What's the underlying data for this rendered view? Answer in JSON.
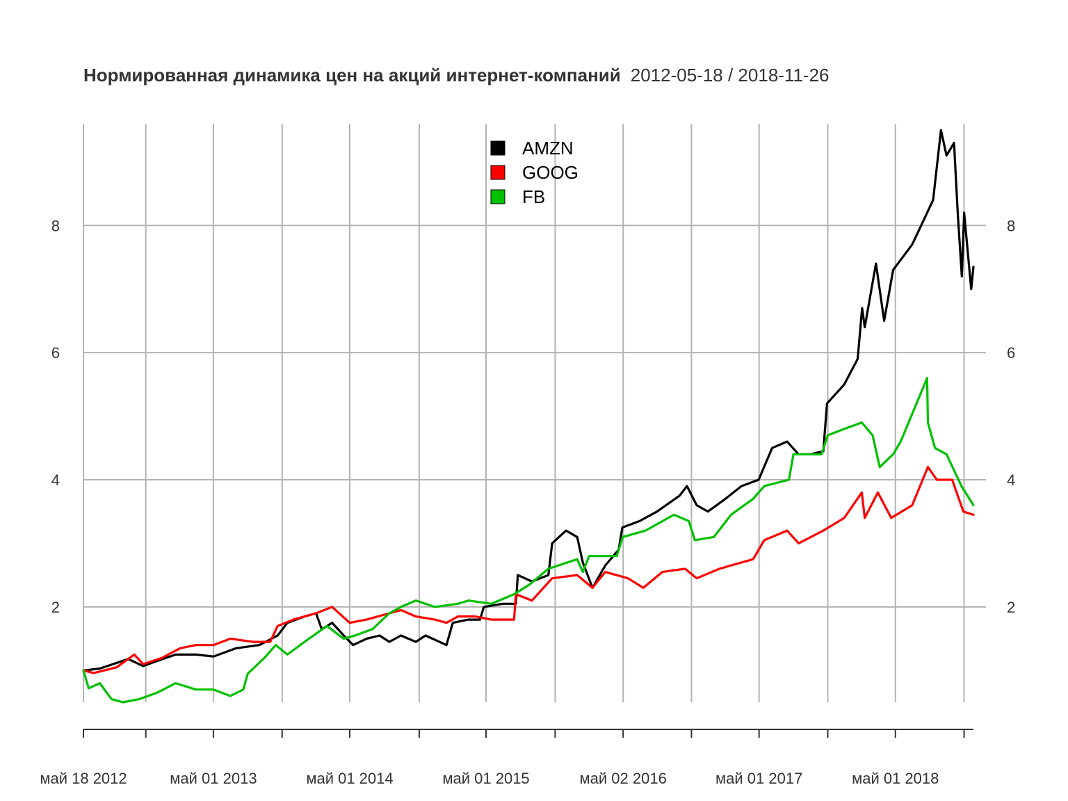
{
  "chart_data": {
    "type": "line",
    "title": "Нормированная динамика цен на акций интернет-компаний",
    "date_range": "2012-05-18 / 2018-11-26",
    "x_axis": {
      "type": "date",
      "range": [
        "2012-05-18",
        "2018-11-26"
      ],
      "tick_labels": [
        {
          "date": "2012-05-18",
          "label": "май 18 2012"
        },
        {
          "date": "2013-05-01",
          "label": "май 01 2013"
        },
        {
          "date": "2014-05-01",
          "label": "май 01 2014"
        },
        {
          "date": "2015-05-01",
          "label": "май 01 2015"
        },
        {
          "date": "2016-05-02",
          "label": "май 02 2016"
        },
        {
          "date": "2017-05-01",
          "label": "май 01 2017"
        },
        {
          "date": "2018-05-01",
          "label": "май 01 2018"
        }
      ],
      "minor_ticks": [
        "2012-11-01",
        "2013-11-01",
        "2014-11-03",
        "2015-11-02",
        "2016-11-01",
        "2017-11-01",
        "2018-11-01"
      ]
    },
    "y_axis": {
      "range": [
        0.5,
        9.6
      ],
      "ticks": [
        2,
        4,
        6,
        8
      ],
      "tick_labels": [
        "2",
        "4",
        "6",
        "8"
      ]
    },
    "grid": true,
    "legend": {
      "position": "top-center",
      "entries": [
        "AMZN",
        "GOOG",
        "FB"
      ]
    },
    "series": [
      {
        "name": "AMZN",
        "color": "#000000",
        "points": [
          [
            "2012-05-18",
            1.0
          ],
          [
            "2012-07-01",
            1.03
          ],
          [
            "2012-09-15",
            1.18
          ],
          [
            "2012-10-25",
            1.07
          ],
          [
            "2012-12-01",
            1.15
          ],
          [
            "2013-01-20",
            1.25
          ],
          [
            "2013-03-15",
            1.25
          ],
          [
            "2013-05-01",
            1.22
          ],
          [
            "2013-07-01",
            1.35
          ],
          [
            "2013-09-01",
            1.4
          ],
          [
            "2013-10-20",
            1.55
          ],
          [
            "2013-11-15",
            1.75
          ],
          [
            "2013-12-31",
            1.85
          ],
          [
            "2014-01-31",
            1.9
          ],
          [
            "2014-02-15",
            1.65
          ],
          [
            "2014-03-15",
            1.75
          ],
          [
            "2014-04-15",
            1.55
          ],
          [
            "2014-05-10",
            1.4
          ],
          [
            "2014-06-15",
            1.5
          ],
          [
            "2014-07-20",
            1.55
          ],
          [
            "2014-08-15",
            1.45
          ],
          [
            "2014-09-15",
            1.55
          ],
          [
            "2014-10-25",
            1.45
          ],
          [
            "2014-11-20",
            1.55
          ],
          [
            "2015-01-15",
            1.4
          ],
          [
            "2015-02-01",
            1.75
          ],
          [
            "2015-03-15",
            1.8
          ],
          [
            "2015-04-15",
            1.8
          ],
          [
            "2015-04-25",
            2.0
          ],
          [
            "2015-06-15",
            2.05
          ],
          [
            "2015-07-20",
            2.05
          ],
          [
            "2015-07-25",
            2.5
          ],
          [
            "2015-09-01",
            2.4
          ],
          [
            "2015-10-15",
            2.5
          ],
          [
            "2015-10-25",
            3.0
          ],
          [
            "2015-12-01",
            3.2
          ],
          [
            "2015-12-31",
            3.1
          ],
          [
            "2016-01-15",
            2.7
          ],
          [
            "2016-02-10",
            2.3
          ],
          [
            "2016-03-15",
            2.65
          ],
          [
            "2016-04-20",
            2.9
          ],
          [
            "2016-04-30",
            3.25
          ],
          [
            "2016-06-15",
            3.35
          ],
          [
            "2016-08-01",
            3.5
          ],
          [
            "2016-09-30",
            3.75
          ],
          [
            "2016-10-20",
            3.9
          ],
          [
            "2016-11-15",
            3.6
          ],
          [
            "2016-12-15",
            3.5
          ],
          [
            "2017-01-31",
            3.7
          ],
          [
            "2017-03-15",
            3.9
          ],
          [
            "2017-04-30",
            4.0
          ],
          [
            "2017-06-05",
            4.5
          ],
          [
            "2017-07-15",
            4.6
          ],
          [
            "2017-08-15",
            4.4
          ],
          [
            "2017-09-15",
            4.4
          ],
          [
            "2017-10-20",
            4.45
          ],
          [
            "2017-10-30",
            5.2
          ],
          [
            "2017-12-15",
            5.5
          ],
          [
            "2018-01-20",
            5.9
          ],
          [
            "2018-02-01",
            6.7
          ],
          [
            "2018-02-08",
            6.4
          ],
          [
            "2018-03-10",
            7.4
          ],
          [
            "2018-04-01",
            6.5
          ],
          [
            "2018-04-25",
            7.3
          ],
          [
            "2018-06-15",
            7.7
          ],
          [
            "2018-07-25",
            8.2
          ],
          [
            "2018-08-10",
            8.4
          ],
          [
            "2018-08-31",
            9.5
          ],
          [
            "2018-09-15",
            9.1
          ],
          [
            "2018-10-05",
            9.3
          ],
          [
            "2018-10-15",
            8.2
          ],
          [
            "2018-10-26",
            7.2
          ],
          [
            "2018-11-01",
            8.2
          ],
          [
            "2018-11-20",
            7.0
          ],
          [
            "2018-11-26",
            7.35
          ]
        ]
      },
      {
        "name": "GOOG",
        "color": "#ff0000",
        "points": [
          [
            "2012-05-18",
            1.0
          ],
          [
            "2012-06-15",
            0.96
          ],
          [
            "2012-08-15",
            1.05
          ],
          [
            "2012-10-01",
            1.25
          ],
          [
            "2012-10-25",
            1.1
          ],
          [
            "2012-12-15",
            1.2
          ],
          [
            "2013-02-01",
            1.35
          ],
          [
            "2013-03-15",
            1.4
          ],
          [
            "2013-05-01",
            1.4
          ],
          [
            "2013-06-15",
            1.5
          ],
          [
            "2013-08-15",
            1.45
          ],
          [
            "2013-09-30",
            1.45
          ],
          [
            "2013-10-20",
            1.7
          ],
          [
            "2013-12-01",
            1.8
          ],
          [
            "2014-01-31",
            1.9
          ],
          [
            "2014-03-15",
            2.0
          ],
          [
            "2014-05-01",
            1.75
          ],
          [
            "2014-06-15",
            1.8
          ],
          [
            "2014-08-15",
            1.9
          ],
          [
            "2014-09-15",
            1.95
          ],
          [
            "2014-10-25",
            1.85
          ],
          [
            "2014-12-15",
            1.8
          ],
          [
            "2015-01-15",
            1.75
          ],
          [
            "2015-02-15",
            1.85
          ],
          [
            "2015-04-01",
            1.85
          ],
          [
            "2015-05-15",
            1.8
          ],
          [
            "2015-07-15",
            1.8
          ],
          [
            "2015-07-20",
            2.2
          ],
          [
            "2015-09-01",
            2.1
          ],
          [
            "2015-10-25",
            2.45
          ],
          [
            "2015-12-31",
            2.5
          ],
          [
            "2016-02-10",
            2.3
          ],
          [
            "2016-03-15",
            2.55
          ],
          [
            "2016-05-15",
            2.45
          ],
          [
            "2016-06-25",
            2.3
          ],
          [
            "2016-08-15",
            2.55
          ],
          [
            "2016-10-15",
            2.6
          ],
          [
            "2016-11-15",
            2.45
          ],
          [
            "2017-01-15",
            2.6
          ],
          [
            "2017-03-15",
            2.7
          ],
          [
            "2017-04-15",
            2.75
          ],
          [
            "2017-05-15",
            3.05
          ],
          [
            "2017-07-15",
            3.2
          ],
          [
            "2017-08-15",
            3.0
          ],
          [
            "2017-10-20",
            3.2
          ],
          [
            "2017-12-15",
            3.4
          ],
          [
            "2018-01-31",
            3.8
          ],
          [
            "2018-02-08",
            3.4
          ],
          [
            "2018-03-15",
            3.8
          ],
          [
            "2018-04-20",
            3.4
          ],
          [
            "2018-06-15",
            3.6
          ],
          [
            "2018-07-27",
            4.2
          ],
          [
            "2018-08-20",
            4.0
          ],
          [
            "2018-09-30",
            4.0
          ],
          [
            "2018-10-30",
            3.5
          ],
          [
            "2018-11-26",
            3.45
          ]
        ]
      },
      {
        "name": "FB",
        "color": "#00c000",
        "points": [
          [
            "2012-05-18",
            1.0
          ],
          [
            "2012-06-01",
            0.72
          ],
          [
            "2012-07-01",
            0.8
          ],
          [
            "2012-08-01",
            0.55
          ],
          [
            "2012-09-01",
            0.5
          ],
          [
            "2012-10-15",
            0.55
          ],
          [
            "2012-12-01",
            0.65
          ],
          [
            "2013-01-20",
            0.8
          ],
          [
            "2013-03-15",
            0.7
          ],
          [
            "2013-05-01",
            0.7
          ],
          [
            "2013-06-15",
            0.6
          ],
          [
            "2013-07-20",
            0.7
          ],
          [
            "2013-08-01",
            0.95
          ],
          [
            "2013-09-15",
            1.2
          ],
          [
            "2013-10-15",
            1.4
          ],
          [
            "2013-11-15",
            1.25
          ],
          [
            "2013-12-31",
            1.45
          ],
          [
            "2014-03-01",
            1.7
          ],
          [
            "2014-04-15",
            1.5
          ],
          [
            "2014-05-15",
            1.55
          ],
          [
            "2014-07-01",
            1.65
          ],
          [
            "2014-08-15",
            1.9
          ],
          [
            "2014-09-15",
            2.0
          ],
          [
            "2014-10-25",
            2.1
          ],
          [
            "2014-12-15",
            2.0
          ],
          [
            "2015-02-15",
            2.05
          ],
          [
            "2015-03-15",
            2.1
          ],
          [
            "2015-05-15",
            2.05
          ],
          [
            "2015-07-15",
            2.2
          ],
          [
            "2015-08-25",
            2.35
          ],
          [
            "2015-10-15",
            2.6
          ],
          [
            "2015-12-31",
            2.75
          ],
          [
            "2016-01-15",
            2.55
          ],
          [
            "2016-02-01",
            2.8
          ],
          [
            "2016-04-15",
            2.8
          ],
          [
            "2016-05-01",
            3.1
          ],
          [
            "2016-07-01",
            3.2
          ],
          [
            "2016-09-15",
            3.45
          ],
          [
            "2016-10-25",
            3.35
          ],
          [
            "2016-11-10",
            3.05
          ],
          [
            "2016-12-31",
            3.1
          ],
          [
            "2017-02-15",
            3.45
          ],
          [
            "2017-04-15",
            3.7
          ],
          [
            "2017-05-15",
            3.9
          ],
          [
            "2017-07-20",
            4.0
          ],
          [
            "2017-08-01",
            4.4
          ],
          [
            "2017-10-15",
            4.4
          ],
          [
            "2017-11-01",
            4.7
          ],
          [
            "2017-12-15",
            4.8
          ],
          [
            "2018-01-31",
            4.9
          ],
          [
            "2018-03-01",
            4.7
          ],
          [
            "2018-03-20",
            4.2
          ],
          [
            "2018-04-25",
            4.4
          ],
          [
            "2018-05-15",
            4.6
          ],
          [
            "2018-07-25",
            5.6
          ],
          [
            "2018-07-27",
            4.9
          ],
          [
            "2018-08-15",
            4.5
          ],
          [
            "2018-09-15",
            4.4
          ],
          [
            "2018-10-25",
            3.9
          ],
          [
            "2018-11-26",
            3.6
          ]
        ]
      }
    ]
  }
}
